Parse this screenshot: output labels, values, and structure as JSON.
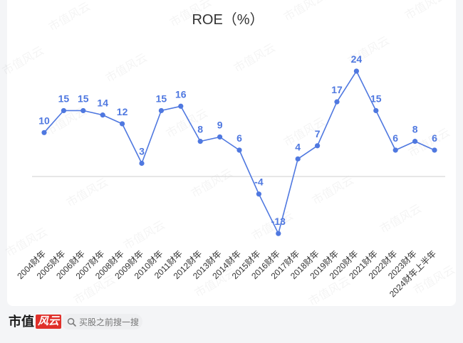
{
  "chart_data": {
    "type": "line",
    "title": "ROE（%）",
    "categories": [
      "2004财年",
      "2005财年",
      "2006财年",
      "2007财年",
      "2008财年",
      "2009财年",
      "2010财年",
      "2011财年",
      "2012财年",
      "2013财年",
      "2014财年",
      "2015财年",
      "2016财年",
      "2017财年",
      "2018财年",
      "2019财年",
      "2020财年",
      "2021财年",
      "2022财年",
      "2023财年",
      "2024财年上半年"
    ],
    "values": [
      10,
      15,
      15,
      14,
      12,
      3,
      15,
      16,
      8,
      9,
      6,
      -4,
      -13,
      4,
      7,
      17,
      24,
      15,
      6,
      8,
      6
    ],
    "data_labels": true,
    "grid": false,
    "legend": "none",
    "zero_line": true
  },
  "colors": {
    "line": "#4f78e0",
    "label": "#4f78e0",
    "zero_line": "#cfcfcf",
    "tick_text": "#333333",
    "title_text": "#333333",
    "brand_red": "#e0302a"
  },
  "footer": {
    "logo": {
      "part1": "市值",
      "part2": "风云"
    },
    "search": {
      "icon": "search-icon",
      "placeholder": "买股之前搜一搜"
    }
  },
  "watermark": {
    "text": "市值风云"
  }
}
